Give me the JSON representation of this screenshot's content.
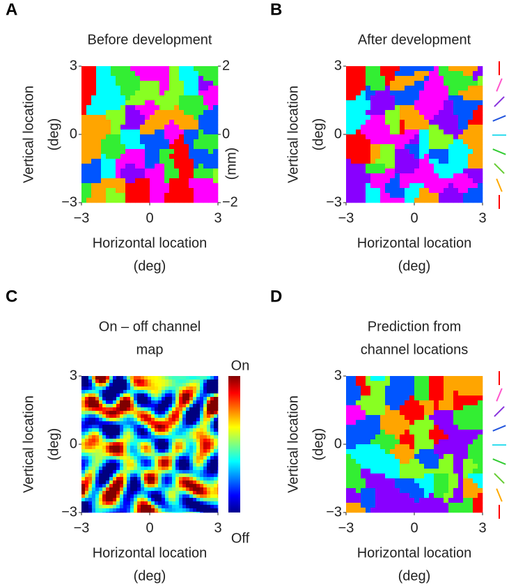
{
  "panels": [
    {
      "letter": "A",
      "title": [
        "Before development"
      ],
      "map": "orientation",
      "x_label": [
        "Horizontal location",
        "(deg)"
      ],
      "y_label": [
        "Vertical location",
        "(deg)"
      ],
      "xlim": [
        -3,
        3
      ],
      "ylim": [
        -3,
        3
      ],
      "xticks": [
        {
          "value": -3,
          "label": "−3"
        },
        0,
        3
      ],
      "yticks": [
        {
          "value": -3,
          "label": "−3"
        },
        0,
        3
      ],
      "y2_label": "(mm)",
      "y2lim": [
        -2,
        2
      ],
      "y2ticks": [
        {
          "value": -2,
          "label": "−2"
        },
        0,
        2
      ]
    },
    {
      "letter": "B",
      "title": [
        "After development"
      ],
      "map": "orientation",
      "orientation_key": true,
      "x_label": [
        "Horizontal location",
        "(deg)"
      ],
      "y_label": [
        "Vertical location",
        "(deg)"
      ],
      "xlim": [
        -3,
        3
      ],
      "ylim": [
        -3,
        3
      ],
      "xticks": [
        {
          "value": -3,
          "label": "−3"
        },
        0,
        3
      ],
      "yticks": [
        {
          "value": -3,
          "label": "−3"
        },
        0,
        3
      ]
    },
    {
      "letter": "C",
      "title": [
        "On – off channel",
        "map"
      ],
      "map": "channel",
      "colorbar": {
        "top": "On",
        "bottom": "Off"
      },
      "x_label": [
        "Horizontal location",
        "(deg)"
      ],
      "y_label": [
        "Vertical location",
        "(deg)"
      ],
      "xlim": [
        -3,
        3
      ],
      "ylim": [
        -3,
        3
      ],
      "xticks": [
        {
          "value": -3,
          "label": "−3"
        },
        0,
        3
      ],
      "yticks": [
        {
          "value": -3,
          "label": "−3"
        },
        0,
        3
      ]
    },
    {
      "letter": "D",
      "title": [
        "Prediction from",
        "channel locations"
      ],
      "map": "orientation",
      "orientation_key": true,
      "x_label": [
        "Horizontal location",
        "(deg)"
      ],
      "y_label": [
        "Vertical location",
        "(deg)"
      ],
      "xlim": [
        -3,
        3
      ],
      "ylim": [
        -3,
        3
      ],
      "xticks": [
        {
          "value": -3,
          "label": "−3"
        },
        0,
        3
      ],
      "yticks": [
        {
          "value": -3,
          "label": "−3"
        },
        0,
        3
      ]
    }
  ]
}
